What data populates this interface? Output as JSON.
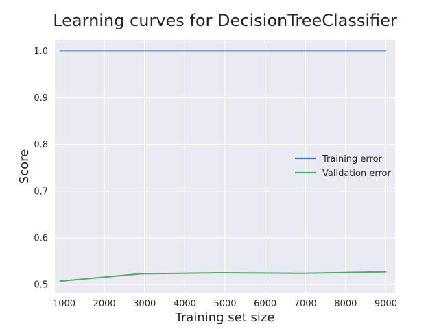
{
  "chart_data": {
    "type": "line",
    "title": "Learning curves for DecisionTreeClassifier",
    "xlabel": "Training set size",
    "ylabel": "Score",
    "xlim": [
      770,
      9230
    ],
    "ylim": [
      0.4825,
      1.024
    ],
    "xticks": [
      1000,
      2000,
      3000,
      4000,
      5000,
      6000,
      7000,
      8000,
      9000
    ],
    "yticks": [
      0.5,
      0.6,
      0.7,
      0.8,
      0.9,
      1.0
    ],
    "xtick_labels": [
      "1000",
      "2000",
      "3000",
      "4000",
      "5000",
      "6000",
      "7000",
      "8000",
      "9000"
    ],
    "ytick_labels": [
      "0.5",
      "0.6",
      "0.7",
      "0.8",
      "0.9",
      "1.0"
    ],
    "grid": true,
    "legend_position": "right",
    "x": [
      900,
      2900,
      4900,
      6900,
      9000
    ],
    "series": [
      {
        "name": "Training error",
        "color": "#4C72B0",
        "values": [
          1.0,
          1.0,
          1.0,
          1.0,
          1.0
        ]
      },
      {
        "name": "Validation error",
        "color": "#55A868",
        "values": [
          0.507,
          0.523,
          0.525,
          0.524,
          0.527
        ]
      }
    ]
  }
}
